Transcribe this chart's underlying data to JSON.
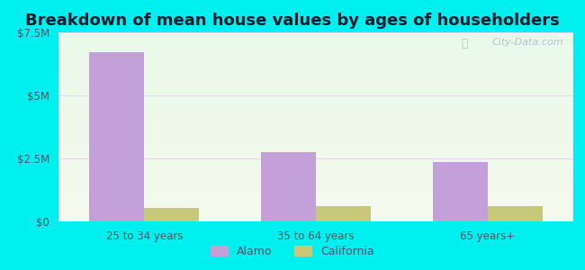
{
  "title": "Breakdown of mean house values by ages of householders",
  "categories": [
    "25 to 34 years",
    "35 to 64 years",
    "65 years+"
  ],
  "alamo_values": [
    6700000,
    2750000,
    2350000
  ],
  "california_values": [
    530000,
    620000,
    600000
  ],
  "ylim": [
    0,
    7500000
  ],
  "yticks": [
    0,
    2500000,
    5000000,
    7500000
  ],
  "ytick_labels": [
    "$0",
    "$2.5M",
    "$5M",
    "$7.5M"
  ],
  "alamo_color": "#c4a0d8",
  "california_color": "#c8c87a",
  "bar_width": 0.32,
  "legend_labels": [
    "Alamo",
    "California"
  ],
  "outer_bg": "#00f0f0",
  "plot_bg": "#e8f5e4",
  "title_fontsize": 13,
  "watermark": "City-Data.com",
  "grid_color": "#d0e8d0",
  "tick_color": "#555566",
  "tick_fontsize": 8.5
}
